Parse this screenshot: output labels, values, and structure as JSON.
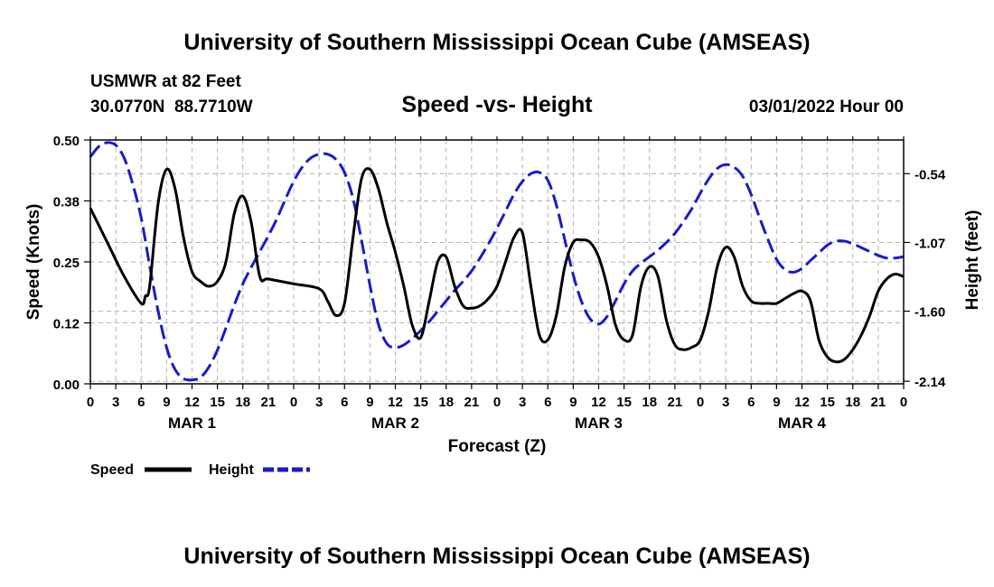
{
  "header": {
    "title": "University of Southern Mississippi Ocean Cube (AMSEAS)",
    "station": "USMWR at 82 Feet",
    "coords": "30.0770N  88.7710W",
    "subtitle": "Speed -vs- Height",
    "timestamp": "03/01/2022 Hour 00"
  },
  "footer": {
    "title": "University of Southern Mississippi Ocean Cube (AMSEAS)"
  },
  "colors": {
    "speed": "#000000",
    "height": "#1a1acc",
    "grid": "#b4b4b4"
  },
  "chart_data": {
    "type": "line",
    "title": "Speed -vs- Height",
    "xlabel": "Forecast (Z)",
    "ylabel_left": "Speed (Knots)",
    "ylabel_right": "Height (feet)",
    "xlim": [
      0,
      96
    ],
    "ylim_left": [
      0.0,
      0.5
    ],
    "ylim_right": [
      -2.16,
      -0.28
    ],
    "x_ticks": [
      0,
      3,
      6,
      9,
      12,
      15,
      18,
      21,
      24,
      27,
      30,
      33,
      36,
      39,
      42,
      45,
      48,
      51,
      54,
      57,
      60,
      63,
      66,
      69,
      72,
      75,
      78,
      81,
      84,
      87,
      90,
      93,
      96
    ],
    "x_tick_labels": [
      "0",
      "3",
      "6",
      "9",
      "12",
      "15",
      "18",
      "21",
      "0",
      "3",
      "6",
      "9",
      "12",
      "15",
      "18",
      "21",
      "0",
      "3",
      "6",
      "9",
      "12",
      "15",
      "18",
      "21",
      "0",
      "3",
      "6",
      "9",
      "12",
      "15",
      "18",
      "21",
      "0"
    ],
    "day_labels": [
      {
        "x": 12,
        "label": "MAR 1"
      },
      {
        "x": 36,
        "label": "MAR 2"
      },
      {
        "x": 60,
        "label": "MAR 3"
      },
      {
        "x": 84,
        "label": "MAR 4"
      }
    ],
    "y_left_ticks": [
      0.0,
      0.125,
      0.25,
      0.375,
      0.5
    ],
    "y_left_tick_labels": [
      "0.00",
      "0.12",
      "0.25",
      "0.38",
      "0.50"
    ],
    "y_right_ticks": [
      -2.14,
      -1.6,
      -1.07,
      -0.54
    ],
    "y_right_tick_labels": [
      "-2.14",
      "-1.60",
      "-1.07",
      "-0.54"
    ],
    "grid": true,
    "legend": {
      "placement": "bottom-left",
      "entries": [
        {
          "name": "Speed",
          "style": "solid"
        },
        {
          "name": "Height",
          "style": "dashed"
        }
      ]
    },
    "series": [
      {
        "name": "Speed",
        "axis": "left",
        "style": "solid",
        "x": [
          0,
          2,
          4,
          6,
          6.5,
          7,
          8,
          9,
          10,
          11,
          12,
          13,
          14,
          15,
          16,
          17,
          18,
          19,
          20,
          21,
          24,
          27,
          28,
          29,
          30,
          31,
          32,
          33,
          34,
          35,
          36,
          37,
          38,
          39,
          40,
          41,
          42,
          43,
          44,
          45,
          46,
          47,
          48,
          49,
          50,
          51,
          52,
          53,
          54,
          55,
          56,
          57,
          58,
          59,
          60,
          61,
          62,
          63,
          64,
          65,
          66,
          67,
          68,
          69,
          70,
          71,
          72,
          73,
          74,
          75,
          76,
          77,
          78,
          79,
          80,
          81,
          82,
          83,
          84,
          85,
          86,
          87,
          88,
          89,
          90,
          91,
          92,
          93,
          94,
          95,
          96
        ],
        "values": [
          0.36,
          0.29,
          0.22,
          0.165,
          0.18,
          0.2,
          0.37,
          0.44,
          0.4,
          0.3,
          0.23,
          0.21,
          0.2,
          0.21,
          0.25,
          0.35,
          0.385,
          0.33,
          0.22,
          0.215,
          0.205,
          0.195,
          0.17,
          0.14,
          0.165,
          0.3,
          0.42,
          0.44,
          0.4,
          0.33,
          0.27,
          0.2,
          0.12,
          0.095,
          0.17,
          0.25,
          0.26,
          0.2,
          0.16,
          0.155,
          0.16,
          0.175,
          0.2,
          0.25,
          0.3,
          0.31,
          0.2,
          0.1,
          0.09,
          0.14,
          0.24,
          0.29,
          0.295,
          0.29,
          0.26,
          0.2,
          0.12,
          0.09,
          0.1,
          0.2,
          0.24,
          0.22,
          0.13,
          0.08,
          0.07,
          0.075,
          0.09,
          0.15,
          0.24,
          0.28,
          0.26,
          0.2,
          0.17,
          0.165,
          0.165,
          0.165,
          0.175,
          0.185,
          0.19,
          0.17,
          0.09,
          0.055,
          0.045,
          0.05,
          0.07,
          0.1,
          0.14,
          0.19,
          0.215,
          0.225,
          0.22
        ]
      },
      {
        "name": "Height",
        "axis": "right",
        "style": "dashed",
        "x": [
          0,
          1,
          2,
          3,
          4,
          5,
          6,
          7,
          8,
          9,
          10,
          11,
          12,
          13,
          14,
          15,
          16,
          17,
          18,
          19,
          20,
          21,
          22,
          23,
          24,
          25,
          26,
          27,
          28,
          29,
          30,
          31,
          32,
          33,
          34,
          35,
          36,
          37,
          38,
          39,
          40,
          41,
          42,
          43,
          44,
          45,
          46,
          47,
          48,
          49,
          50,
          51,
          52,
          53,
          54,
          55,
          56,
          57,
          58,
          59,
          60,
          61,
          62,
          63,
          64,
          65,
          66,
          67,
          68,
          69,
          70,
          71,
          72,
          73,
          74,
          75,
          76,
          77,
          78,
          79,
          80,
          81,
          82,
          83,
          84,
          85,
          86,
          87,
          88,
          89,
          90,
          91,
          92,
          93,
          94,
          95,
          96
        ],
        "values": [
          -0.41,
          -0.33,
          -0.3,
          -0.32,
          -0.42,
          -0.62,
          -0.88,
          -1.25,
          -1.6,
          -1.88,
          -2.05,
          -2.12,
          -2.13,
          -2.11,
          -2.03,
          -1.9,
          -1.73,
          -1.55,
          -1.39,
          -1.26,
          -1.14,
          -1.02,
          -0.89,
          -0.74,
          -0.6,
          -0.49,
          -0.42,
          -0.39,
          -0.39,
          -0.43,
          -0.53,
          -0.73,
          -1.05,
          -1.4,
          -1.7,
          -1.85,
          -1.88,
          -1.86,
          -1.81,
          -1.75,
          -1.68,
          -1.6,
          -1.52,
          -1.44,
          -1.37,
          -1.29,
          -1.19,
          -1.08,
          -0.96,
          -0.83,
          -0.7,
          -0.6,
          -0.54,
          -0.53,
          -0.59,
          -0.78,
          -1.05,
          -1.32,
          -1.53,
          -1.66,
          -1.7,
          -1.64,
          -1.52,
          -1.39,
          -1.29,
          -1.23,
          -1.18,
          -1.13,
          -1.07,
          -1.0,
          -0.91,
          -0.81,
          -0.69,
          -0.58,
          -0.5,
          -0.47,
          -0.49,
          -0.56,
          -0.7,
          -0.88,
          -1.05,
          -1.2,
          -1.28,
          -1.3,
          -1.27,
          -1.21,
          -1.15,
          -1.09,
          -1.06,
          -1.06,
          -1.08,
          -1.11,
          -1.14,
          -1.17,
          -1.19,
          -1.19,
          -1.18
        ]
      }
    ]
  }
}
